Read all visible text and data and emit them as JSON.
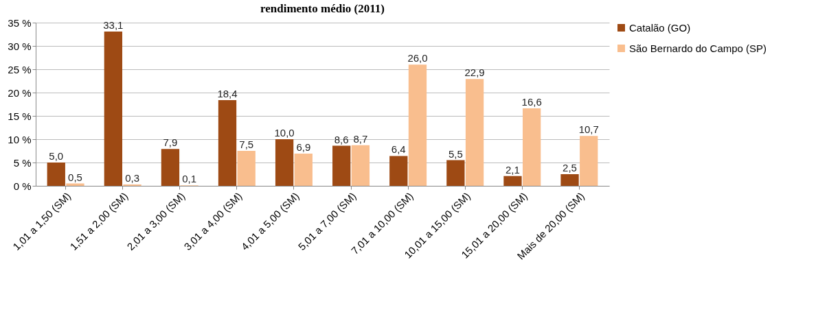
{
  "chart_data": {
    "type": "bar",
    "title": "rendimento médio (2011)",
    "categories": [
      "1,01 a 1,50 (SM)",
      "1,51 a 2,00 (SM)",
      "2,01 a 3,00 (SM)",
      "3,01 a 4,00 (SM)",
      "4,01 a 5,00 (SM)",
      "5,01 a 7,00 (SM)",
      "7,01 a 10,00 (SM)",
      "10,01 a 15,00 (SM)",
      "15,01 a 20,00 (SM)",
      "Mais de 20,00 (SM)"
    ],
    "series": [
      {
        "name": "Catalão (GO)",
        "color": "#9e4a14",
        "values": [
          5.0,
          33.1,
          7.9,
          18.4,
          10.0,
          8.6,
          6.4,
          5.5,
          2.1,
          2.5
        ],
        "value_labels": [
          "5,0",
          "33,1",
          "7,9",
          "18,4",
          "10,0",
          "8,6",
          "6,4",
          "5,5",
          "2,1",
          "2,5"
        ]
      },
      {
        "name": "São Bernardo do Campo (SP)",
        "color": "#f9be8e",
        "values": [
          0.5,
          0.3,
          0.1,
          7.5,
          6.9,
          8.7,
          26.0,
          22.9,
          16.6,
          10.7
        ],
        "value_labels": [
          "0,5",
          "0,3",
          "0,1",
          "7,5",
          "6,9",
          "8,7",
          "26,0",
          "22,9",
          "16,6",
          "10,7"
        ]
      }
    ],
    "ylim": [
      0,
      35
    ],
    "yticks": [
      {
        "value": 0,
        "label": "0 %"
      },
      {
        "value": 5,
        "label": "5 %"
      },
      {
        "value": 10,
        "label": "10 %"
      },
      {
        "value": 15,
        "label": "15 %"
      },
      {
        "value": 20,
        "label": "20 %"
      },
      {
        "value": 25,
        "label": "25 %"
      },
      {
        "value": 30,
        "label": "30 %"
      },
      {
        "value": 35,
        "label": "35 %"
      }
    ],
    "grid": "y",
    "legend": "right"
  }
}
